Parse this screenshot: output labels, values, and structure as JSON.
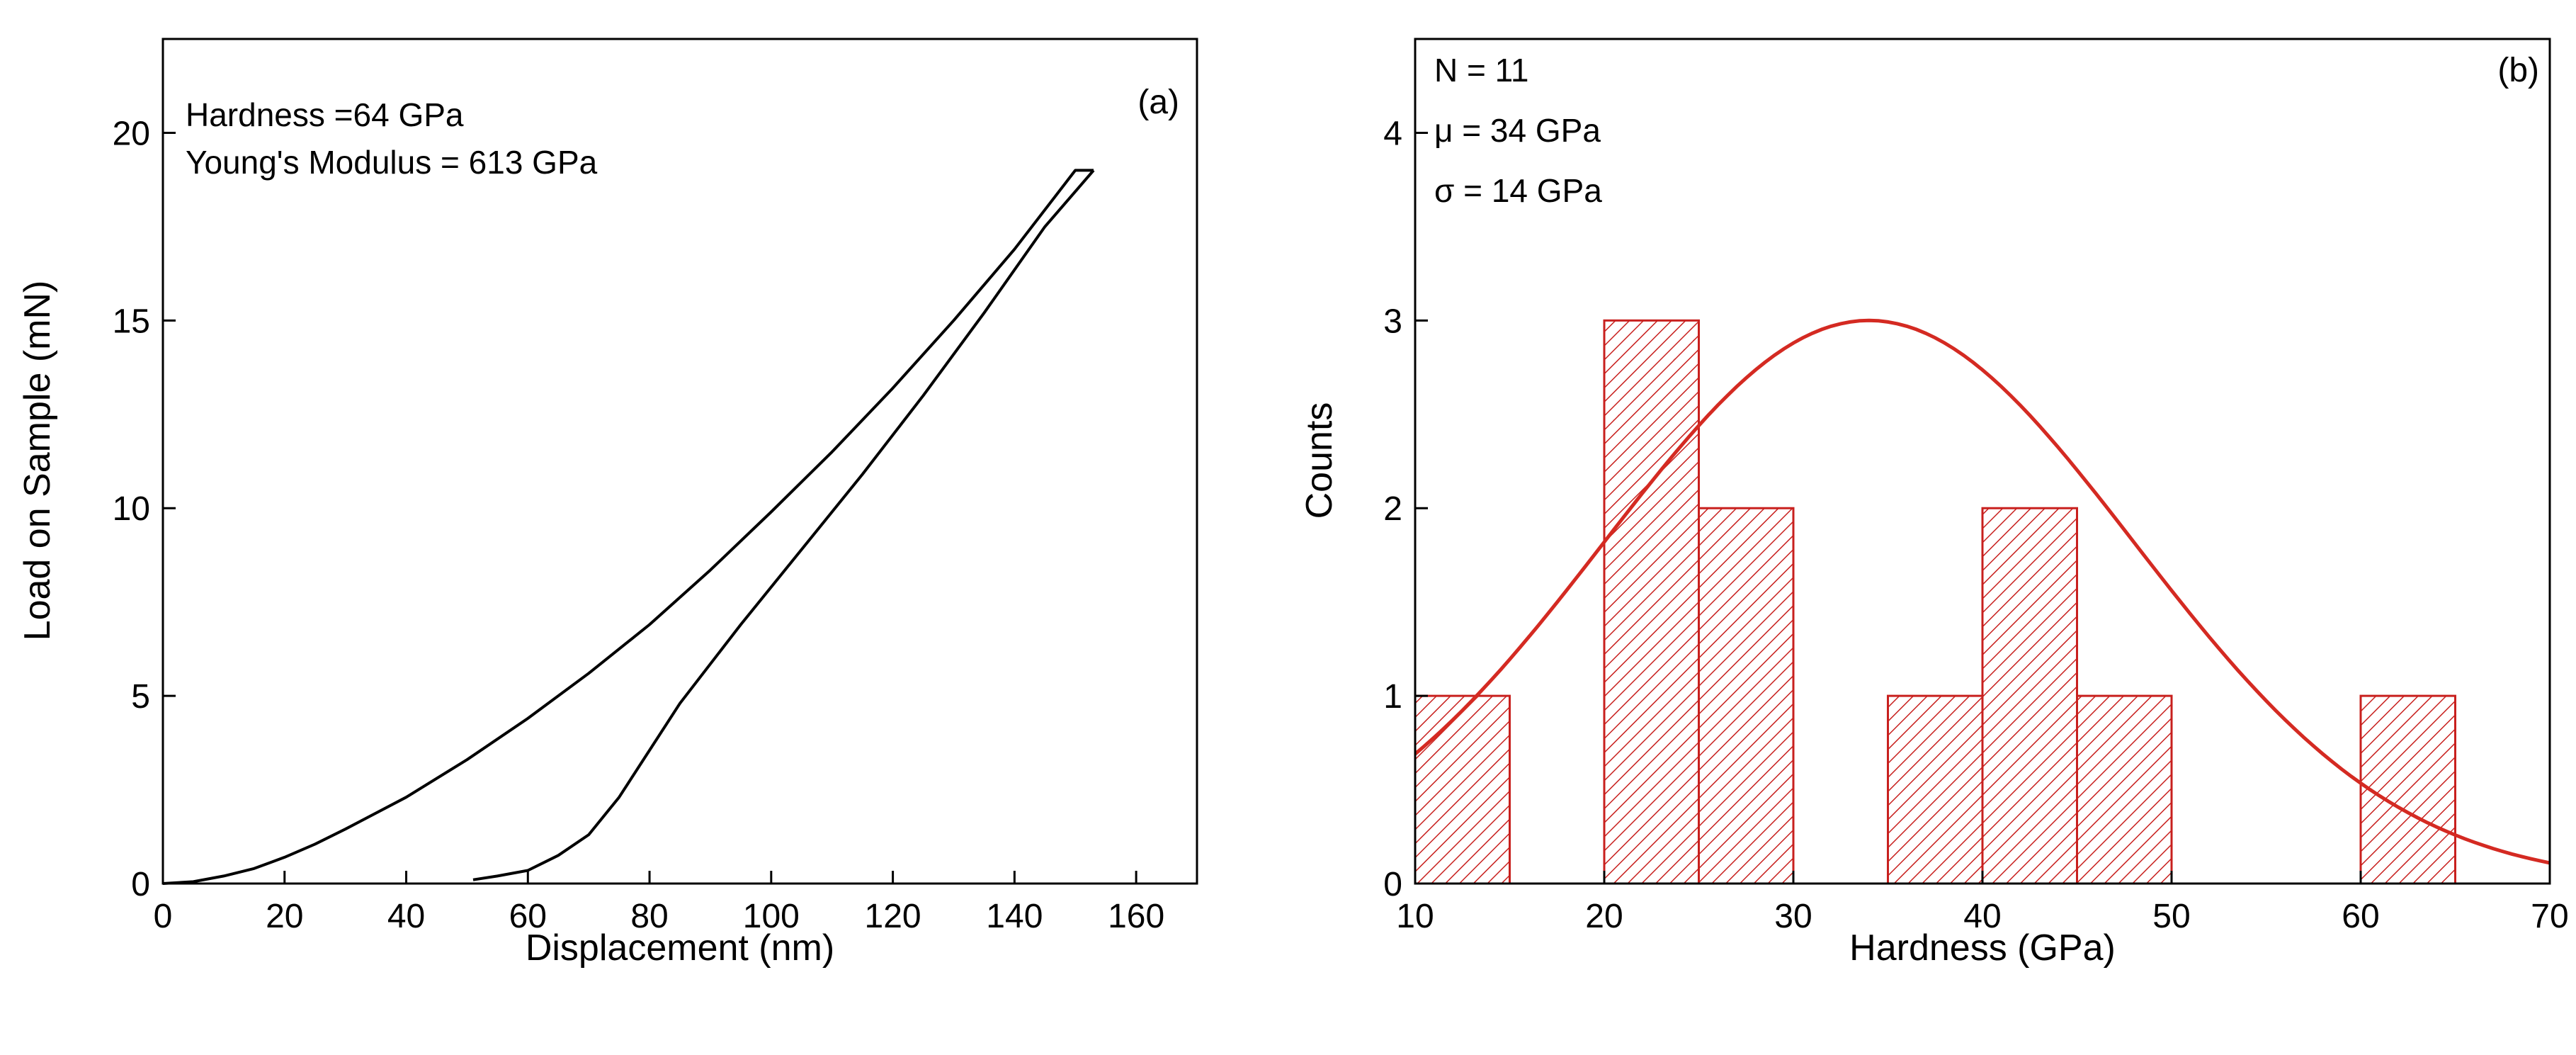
{
  "chart_data": [
    {
      "type": "line",
      "panel_label": "(a)",
      "xlabel": "Displacement (nm)",
      "ylabel": "Load on Sample (mN)",
      "xlim": [
        0,
        170
      ],
      "ylim": [
        0,
        22.5
      ],
      "xticks": [
        0,
        20,
        40,
        60,
        80,
        100,
        120,
        140,
        160
      ],
      "yticks": [
        0,
        5,
        10,
        15,
        20
      ],
      "grid": false,
      "annotations": [
        "Hardness =64 GPa",
        "Young's Modulus = 613 GPa"
      ],
      "line_color": "#000000",
      "series": [
        {
          "values_xy": [
            [
              0,
              0
            ],
            [
              5,
              0.05
            ],
            [
              10,
              0.2
            ],
            [
              15,
              0.4
            ],
            [
              20,
              0.7
            ],
            [
              25,
              1.05
            ],
            [
              30,
              1.45
            ],
            [
              40,
              2.3
            ],
            [
              50,
              3.3
            ],
            [
              60,
              4.4
            ],
            [
              70,
              5.6
            ],
            [
              80,
              6.9
            ],
            [
              90,
              8.35
            ],
            [
              100,
              9.9
            ],
            [
              110,
              11.5
            ],
            [
              120,
              13.2
            ],
            [
              130,
              15.0
            ],
            [
              140,
              16.9
            ],
            [
              150,
              19.0
            ],
            [
              153,
              19.0
            ]
          ]
        },
        {
          "values_xy": [
            [
              153,
              19.0
            ],
            [
              145,
              17.5
            ],
            [
              135,
              15.2
            ],
            [
              125,
              13.0
            ],
            [
              115,
              10.9
            ],
            [
              105,
              8.9
            ],
            [
              95,
              6.9
            ],
            [
              85,
              4.8
            ],
            [
              75,
              2.3
            ],
            [
              70,
              1.3
            ],
            [
              65,
              0.75
            ],
            [
              60,
              0.35
            ],
            [
              55,
              0.2
            ],
            [
              51,
              0.1
            ]
          ]
        }
      ]
    },
    {
      "type": "bar",
      "panel_label": "(b)",
      "xlabel": "Hardness (GPa)",
      "ylabel": "Counts",
      "xlim": [
        10,
        70
      ],
      "ylim": [
        0,
        4.5
      ],
      "xticks": [
        10,
        20,
        30,
        40,
        50,
        60,
        70
      ],
      "yticks": [
        0,
        1,
        2,
        3,
        4
      ],
      "grid": false,
      "annotations": [
        "N = 11",
        "μ = 34 GPa",
        "σ = 14 GPa"
      ],
      "bar_color": "#c8201e",
      "bins": [
        {
          "x0": 10,
          "x1": 15,
          "count": 1
        },
        {
          "x0": 20,
          "x1": 25,
          "count": 3
        },
        {
          "x0": 25,
          "x1": 30,
          "count": 2
        },
        {
          "x0": 35,
          "x1": 40,
          "count": 1
        },
        {
          "x0": 40,
          "x1": 45,
          "count": 2
        },
        {
          "x0": 45,
          "x1": 50,
          "count": 1
        },
        {
          "x0": 60,
          "x1": 65,
          "count": 1
        }
      ],
      "fit_curve": {
        "type": "gaussian",
        "mean": 34,
        "sigma": 14,
        "peak": 3.0,
        "color": "#d42a22"
      }
    }
  ]
}
